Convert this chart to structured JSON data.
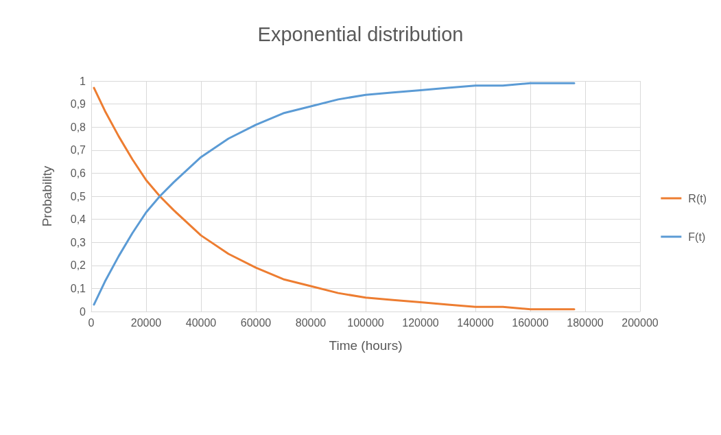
{
  "chart_data": {
    "type": "line",
    "title": "Exponential distribution",
    "xlabel": "Time (hours)",
    "ylabel": "Probability",
    "x": [
      1000,
      5000,
      10000,
      15000,
      20000,
      25000,
      30000,
      40000,
      50000,
      60000,
      70000,
      80000,
      90000,
      100000,
      110000,
      120000,
      130000,
      140000,
      150000,
      160000,
      176000
    ],
    "series": [
      {
        "name": "R(t)",
        "color": "#ed7d31",
        "values": [
          0.97,
          0.87,
          0.76,
          0.66,
          0.57,
          0.5,
          0.44,
          0.33,
          0.25,
          0.19,
          0.14,
          0.11,
          0.08,
          0.06,
          0.05,
          0.04,
          0.03,
          0.02,
          0.02,
          0.01,
          0.01
        ]
      },
      {
        "name": "F(t)",
        "color": "#5b9bd5",
        "values": [
          0.03,
          0.13,
          0.24,
          0.34,
          0.43,
          0.5,
          0.56,
          0.67,
          0.75,
          0.81,
          0.86,
          0.89,
          0.92,
          0.94,
          0.95,
          0.96,
          0.97,
          0.98,
          0.98,
          0.99,
          0.99
        ]
      }
    ],
    "xlim": [
      0,
      200000
    ],
    "xticks": [
      0,
      20000,
      40000,
      60000,
      80000,
      100000,
      120000,
      140000,
      160000,
      180000,
      200000
    ],
    "ylim": [
      0,
      1
    ],
    "yticks": [
      0,
      {
        "value": 0.1,
        "label": "0,1"
      },
      {
        "value": 0.2,
        "label": "0,2"
      },
      {
        "value": 0.3,
        "label": "0,3"
      },
      {
        "value": 0.4,
        "label": "0,4"
      },
      {
        "value": 0.5,
        "label": "0,5"
      },
      {
        "value": 0.6,
        "label": "0,6"
      },
      {
        "value": 0.7,
        "label": "0,7"
      },
      {
        "value": 0.8,
        "label": "0,8"
      },
      {
        "value": 0.9,
        "label": "0,9"
      },
      1
    ],
    "grid": true,
    "legend": "right",
    "marker": "none",
    "line_style": "solid"
  }
}
